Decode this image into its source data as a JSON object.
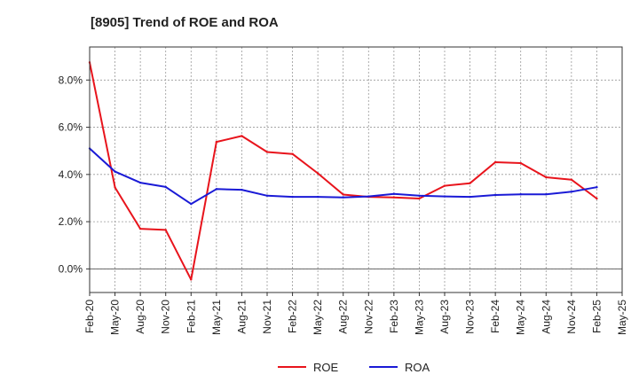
{
  "chart_data": {
    "type": "line",
    "title": "[8905]  Trend of ROE and ROA",
    "xlabel": "",
    "ylabel": "",
    "x": [
      "Feb-20",
      "May-20",
      "Aug-20",
      "Nov-20",
      "Feb-21",
      "May-21",
      "Aug-21",
      "Nov-21",
      "Feb-22",
      "May-22",
      "Aug-22",
      "Nov-22",
      "Feb-23",
      "May-23",
      "Aug-23",
      "Nov-23",
      "Feb-24",
      "May-24",
      "Aug-24",
      "Nov-24",
      "Feb-25",
      "May-25"
    ],
    "x_tick_labels": [
      "Feb-20",
      "May-20",
      "Aug-20",
      "Nov-20",
      "Feb-21",
      "May-21",
      "Aug-21",
      "Nov-21",
      "Feb-22",
      "May-22",
      "Aug-22",
      "Nov-22",
      "Feb-23",
      "May-23",
      "Aug-23",
      "Nov-23",
      "Feb-24",
      "May-24",
      "Aug-24",
      "Nov-24",
      "Feb-25",
      "May-25"
    ],
    "y_tick_labels": [
      "0.0%",
      "2.0%",
      "4.0%",
      "6.0%",
      "8.0%"
    ],
    "y_ticks": [
      0,
      2,
      4,
      6,
      8
    ],
    "ylim": [
      -1.0,
      9.4
    ],
    "grid": true,
    "legend_position": "bottom-center",
    "series": [
      {
        "name": "ROE",
        "color": "#e8141c",
        "values": [
          8.75,
          3.45,
          1.7,
          1.65,
          -0.45,
          5.38,
          5.63,
          4.95,
          4.87,
          4.05,
          3.15,
          3.05,
          3.03,
          2.98,
          3.52,
          3.63,
          4.52,
          4.48,
          3.88,
          3.78,
          2.98,
          null
        ]
      },
      {
        "name": "ROA",
        "color": "#1a1ad6",
        "values": [
          5.1,
          4.12,
          3.65,
          3.47,
          2.75,
          3.38,
          3.35,
          3.1,
          3.05,
          3.05,
          3.03,
          3.07,
          3.18,
          3.1,
          3.07,
          3.05,
          3.13,
          3.16,
          3.16,
          3.27,
          3.46,
          null
        ]
      }
    ]
  }
}
